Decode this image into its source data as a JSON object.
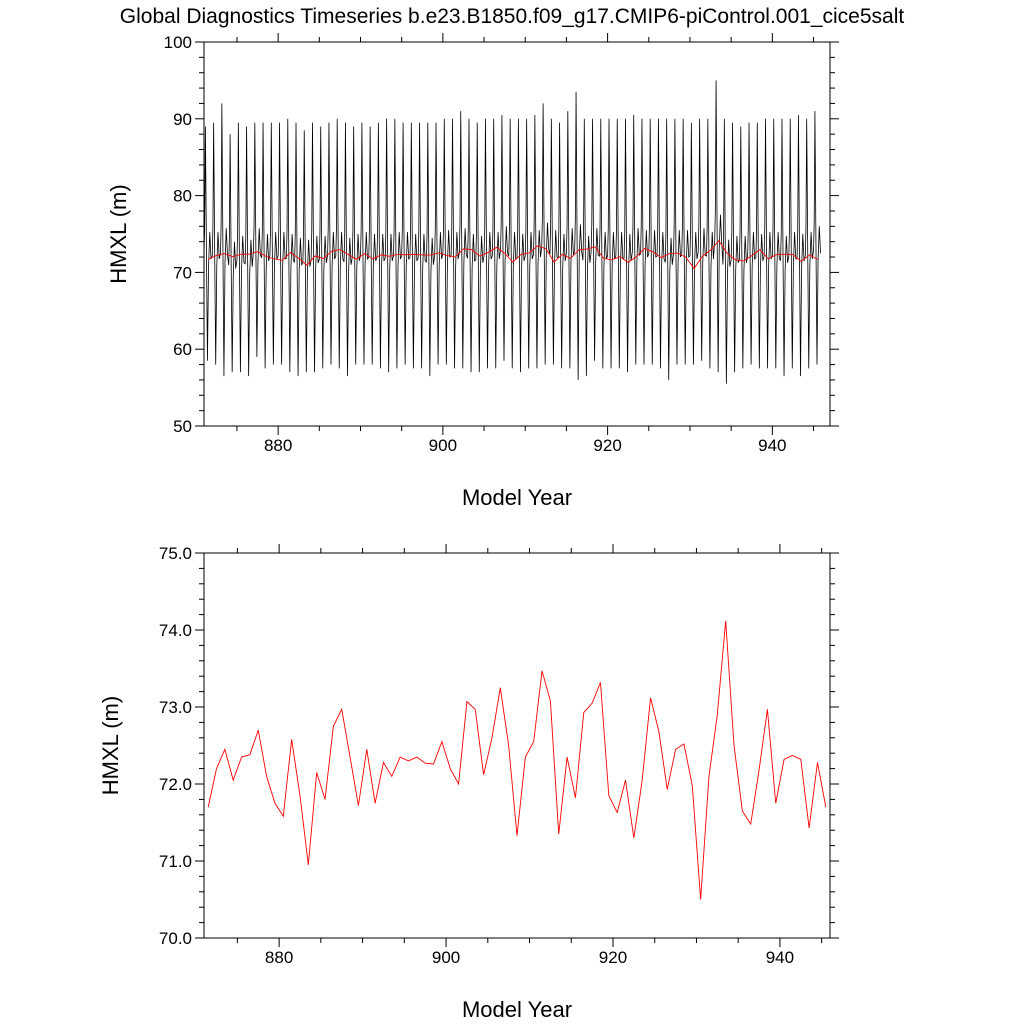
{
  "title": "Global Diagnostics Timeseries b.e23.B1850.f09_g17.CMIP6-piControl.001_cice5salt",
  "colors": {
    "monthly": "#000000",
    "annual": "#ff0000",
    "frame": "#000000"
  },
  "chart_data": [
    {
      "type": "line",
      "xlabel": "Model Year",
      "ylabel": "HMXL (m)",
      "xlim": [
        871,
        947
      ],
      "ylim": [
        50,
        100
      ],
      "xticks": [
        880,
        900,
        920,
        940
      ],
      "xtick_labels": [
        "880",
        "900",
        "920",
        "940"
      ],
      "yticks": [
        50,
        60,
        70,
        80,
        90,
        100
      ],
      "ytick_labels": [
        "50",
        "60",
        "70",
        "80",
        "90",
        "100"
      ],
      "grid": false,
      "monthly_peaks": [
        89,
        89.5,
        92,
        88,
        89.5,
        89,
        89.5,
        89.5,
        89.5,
        89.5,
        90,
        89.5,
        88.5,
        89.5,
        89,
        89.5,
        90,
        89.5,
        89,
        89.5,
        89,
        89.5,
        90,
        90,
        89.5,
        89.5,
        89.5,
        89.5,
        89.5,
        90,
        90,
        91,
        90,
        89.5,
        90,
        90,
        90.5,
        90,
        90,
        90,
        90.5,
        92,
        90,
        89.5,
        91,
        93.5,
        90,
        90,
        90,
        90,
        90,
        90,
        90.5,
        90,
        90,
        90,
        90,
        90,
        90,
        89.5,
        90,
        90,
        95,
        90,
        89.5,
        89,
        89.5,
        89.5,
        90,
        90,
        90,
        90,
        90.5,
        90,
        91
      ],
      "monthly_troughs": [
        58.5,
        58,
        56.5,
        57,
        57,
        56.5,
        59,
        57.5,
        58,
        58,
        57,
        56.5,
        57,
        57,
        57.5,
        58,
        57.5,
        56.5,
        58,
        58,
        58,
        57.5,
        57,
        57.5,
        58,
        57.5,
        57.5,
        56.5,
        58,
        58,
        57.5,
        57.5,
        57,
        57,
        57.5,
        57.5,
        58.5,
        57.5,
        57,
        57.5,
        57.5,
        58,
        58,
        57.5,
        57.5,
        56,
        56.5,
        58.5,
        57.5,
        57.5,
        57.5,
        57,
        58,
        58,
        58,
        57.5,
        56,
        58,
        58,
        58,
        58.5,
        57.5,
        57,
        55.5,
        57,
        57.5,
        58,
        57.5,
        57.5,
        57.5,
        56.5,
        57.5,
        56.5,
        57.5,
        58
      ],
      "series": [
        {
          "years": [
            871.5,
            872.5,
            873.5,
            874.5,
            875.5,
            876.5,
            877.5,
            878.5,
            879.5,
            880.5,
            881.5,
            882.5,
            883.5,
            884.5,
            885.5,
            886.5,
            887.5,
            888.5,
            889.5,
            890.5,
            891.5,
            892.5,
            893.5,
            894.5,
            895.5,
            896.5,
            897.5,
            898.5,
            899.5,
            900.5,
            901.5,
            902.5,
            903.5,
            904.5,
            905.5,
            906.5,
            907.5,
            908.5,
            909.5,
            910.5,
            911.5,
            912.5,
            913.5,
            914.5,
            915.5,
            916.5,
            917.5,
            918.5,
            919.5,
            920.5,
            921.5,
            922.5,
            923.5,
            924.5,
            925.5,
            926.5,
            927.5,
            928.5,
            929.5,
            930.5,
            931.5,
            932.5,
            933.5,
            934.5,
            935.5,
            936.5,
            937.5,
            938.5,
            939.5,
            940.5,
            941.5,
            942.5,
            943.5,
            944.5,
            945.5
          ],
          "values": [
            71.7,
            72.2,
            72.45,
            72.05,
            72.35,
            72.38,
            72.7,
            72.1,
            71.75,
            71.58,
            72.58,
            71.85,
            70.95,
            72.15,
            71.8,
            72.75,
            72.97,
            72.35,
            71.72,
            72.45,
            71.75,
            72.28,
            72.1,
            72.35,
            72.3,
            72.35,
            72.27,
            72.26,
            72.55,
            72.2,
            72.0,
            73.07,
            72.97,
            72.12,
            72.6,
            73.25,
            72.5,
            71.33,
            72.35,
            72.55,
            73.47,
            73.08,
            71.35,
            72.35,
            71.82,
            72.93,
            73.05,
            73.32,
            71.85,
            71.63,
            72.05,
            71.3,
            72.05,
            73.12,
            72.68,
            71.93,
            72.45,
            72.52,
            71.98,
            70.5,
            72.1,
            72.9,
            74.12,
            72.5,
            71.65,
            71.48,
            72.18,
            72.97,
            71.75,
            72.32,
            72.37,
            72.32,
            71.43,
            72.28,
            71.7
          ]
        }
      ]
    },
    {
      "type": "line",
      "xlabel": "Model Year",
      "ylabel": "HMXL (m)",
      "xlim": [
        871,
        946
      ],
      "ylim": [
        70,
        75
      ],
      "xticks": [
        880,
        900,
        920,
        940
      ],
      "xtick_labels": [
        "880",
        "900",
        "920",
        "940"
      ],
      "yticks": [
        70,
        71,
        72,
        73,
        74,
        75
      ],
      "ytick_labels": [
        "70.0",
        "71.0",
        "72.0",
        "73.0",
        "74.0",
        "75.0"
      ],
      "grid": false,
      "series": [
        {
          "years": [
            871.5,
            872.5,
            873.5,
            874.5,
            875.5,
            876.5,
            877.5,
            878.5,
            879.5,
            880.5,
            881.5,
            882.5,
            883.5,
            884.5,
            885.5,
            886.5,
            887.5,
            888.5,
            889.5,
            890.5,
            891.5,
            892.5,
            893.5,
            894.5,
            895.5,
            896.5,
            897.5,
            898.5,
            899.5,
            900.5,
            901.5,
            902.5,
            903.5,
            904.5,
            905.5,
            906.5,
            907.5,
            908.5,
            909.5,
            910.5,
            911.5,
            912.5,
            913.5,
            914.5,
            915.5,
            916.5,
            917.5,
            918.5,
            919.5,
            920.5,
            921.5,
            922.5,
            923.5,
            924.5,
            925.5,
            926.5,
            927.5,
            928.5,
            929.5,
            930.5,
            931.5,
            932.5,
            933.5,
            934.5,
            935.5,
            936.5,
            937.5,
            938.5,
            939.5,
            940.5,
            941.5,
            942.5,
            943.5,
            944.5,
            945.5
          ],
          "values": [
            71.7,
            72.2,
            72.45,
            72.05,
            72.35,
            72.38,
            72.7,
            72.1,
            71.75,
            71.58,
            72.58,
            71.85,
            70.95,
            72.15,
            71.8,
            72.75,
            72.97,
            72.35,
            71.72,
            72.45,
            71.75,
            72.28,
            72.1,
            72.35,
            72.3,
            72.35,
            72.27,
            72.26,
            72.55,
            72.2,
            72.0,
            73.07,
            72.97,
            72.12,
            72.6,
            73.25,
            72.5,
            71.33,
            72.35,
            72.55,
            73.47,
            73.08,
            71.35,
            72.35,
            71.82,
            72.93,
            73.05,
            73.32,
            71.85,
            71.63,
            72.05,
            71.3,
            72.05,
            73.12,
            72.68,
            71.93,
            72.45,
            72.52,
            71.98,
            70.5,
            72.1,
            72.9,
            74.12,
            72.5,
            71.65,
            71.48,
            72.18,
            72.97,
            71.75,
            72.32,
            72.37,
            72.32,
            71.43,
            72.28,
            71.7
          ]
        }
      ]
    }
  ]
}
